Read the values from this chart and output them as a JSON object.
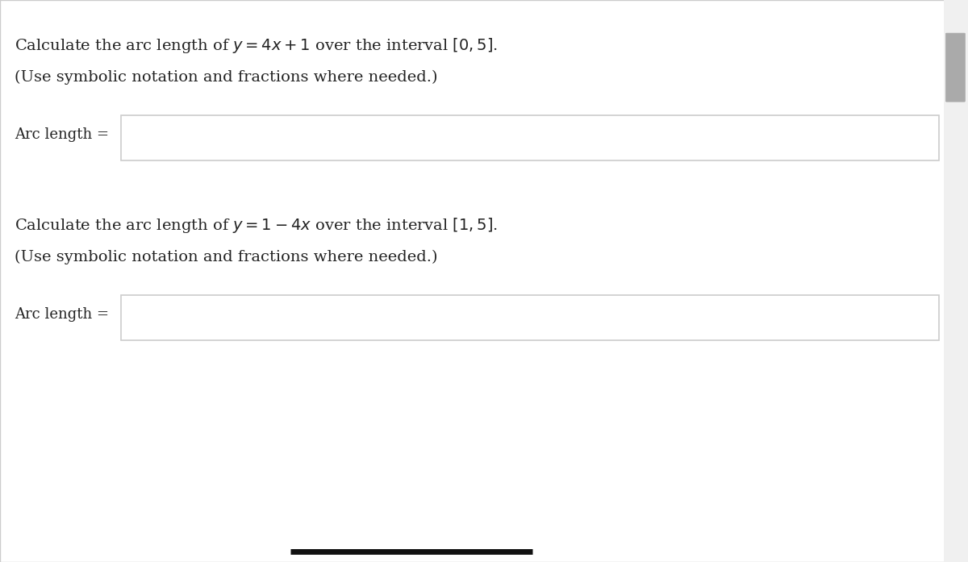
{
  "bg_color": "#f0f0f0",
  "panel_color": "#ffffff",
  "panel_border_color": "#cccccc",
  "text_color": "#222222",
  "line1_q1": "Calculate the arc length of $y = 4x + 1$ over the interval $[0, 5]$.",
  "line1_q2": "(Use symbolic notation and fractions where needed.)",
  "line1_label": "Arc length =",
  "line2_q1": "Calculate the arc length of $y = 1 - 4x$ over the interval $[1, 5]$.",
  "line2_q2": "(Use symbolic notation and fractions where needed.)",
  "line2_label": "Arc length =",
  "font_size_main": 14,
  "font_size_label": 13,
  "bottom_bar_color": "#111111",
  "scrollbar_color": "#aaaaaa"
}
